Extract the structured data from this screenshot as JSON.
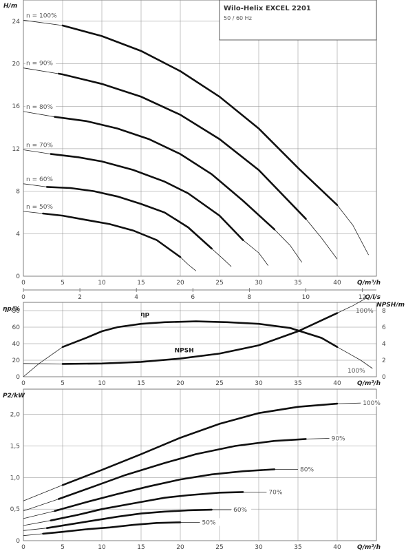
{
  "header": {
    "title": "Wilo-Helix EXCEL 2201",
    "subtitle": "50 / 60 Hz"
  },
  "chart_data": [
    {
      "id": "head",
      "type": "line",
      "xlabel": "Q/m³/h",
      "ylabel": "H/m",
      "xlim": [
        0,
        45
      ],
      "ylim": [
        0,
        26
      ],
      "x_ticks": [
        "0",
        "5",
        "10",
        "15",
        "20",
        "25",
        "30",
        "35",
        "40"
      ],
      "y_ticks": [
        "0",
        "4",
        "8",
        "12",
        "16",
        "20",
        "24"
      ],
      "secondary_x_label": "Q/l/s",
      "secondary_x_ticks": [
        "0",
        "2",
        "4",
        "6",
        "8",
        "10",
        "12"
      ],
      "grid": true,
      "series": [
        {
          "name": "n = 100%",
          "thick_range": [
            5,
            40
          ],
          "points": [
            [
              0,
              24.1
            ],
            [
              5,
              23.6
            ],
            [
              10,
              22.6
            ],
            [
              15,
              21.2
            ],
            [
              20,
              19.3
            ],
            [
              25,
              16.9
            ],
            [
              30,
              13.9
            ],
            [
              35,
              10.2
            ],
            [
              40,
              6.7
            ],
            [
              42,
              4.8
            ],
            [
              44,
              2.0
            ]
          ]
        },
        {
          "name": "n = 90%",
          "thick_range": [
            4.5,
            36
          ],
          "points": [
            [
              0,
              19.6
            ],
            [
              5,
              19.0
            ],
            [
              10,
              18.1
            ],
            [
              15,
              16.9
            ],
            [
              20,
              15.2
            ],
            [
              25,
              12.9
            ],
            [
              30,
              10.0
            ],
            [
              36,
              5.4
            ],
            [
              38,
              3.6
            ],
            [
              40,
              1.6
            ]
          ]
        },
        {
          "name": "n = 80%",
          "thick_range": [
            4,
            32
          ],
          "points": [
            [
              0,
              15.5
            ],
            [
              4,
              15.0
            ],
            [
              8,
              14.6
            ],
            [
              12,
              13.9
            ],
            [
              16,
              12.9
            ],
            [
              20,
              11.5
            ],
            [
              24,
              9.6
            ],
            [
              28,
              7.1
            ],
            [
              32,
              4.4
            ],
            [
              34,
              2.9
            ],
            [
              35.5,
              1.3
            ]
          ]
        },
        {
          "name": "n = 70%",
          "thick_range": [
            3.5,
            28
          ],
          "points": [
            [
              0,
              11.9
            ],
            [
              3.5,
              11.5
            ],
            [
              7,
              11.2
            ],
            [
              10,
              10.8
            ],
            [
              14,
              10.0
            ],
            [
              18,
              8.9
            ],
            [
              21,
              7.8
            ],
            [
              25,
              5.7
            ],
            [
              28,
              3.4
            ],
            [
              30,
              2.2
            ],
            [
              31.2,
              1.0
            ]
          ]
        },
        {
          "name": "n = 60%",
          "thick_range": [
            3,
            24
          ],
          "points": [
            [
              0,
              8.7
            ],
            [
              3,
              8.4
            ],
            [
              6,
              8.3
            ],
            [
              9,
              8.0
            ],
            [
              12,
              7.5
            ],
            [
              15,
              6.8
            ],
            [
              18,
              6.0
            ],
            [
              21,
              4.6
            ],
            [
              24,
              2.6
            ],
            [
              25.5,
              1.6
            ],
            [
              26.5,
              0.9
            ]
          ]
        },
        {
          "name": "n = 50%",
          "thick_range": [
            2.5,
            20
          ],
          "points": [
            [
              0,
              6.1
            ],
            [
              2.5,
              5.9
            ],
            [
              5,
              5.7
            ],
            [
              8,
              5.3
            ],
            [
              11,
              4.9
            ],
            [
              14,
              4.3
            ],
            [
              17,
              3.4
            ],
            [
              20,
              1.8
            ],
            [
              21,
              1.1
            ],
            [
              22,
              0.5
            ]
          ]
        }
      ]
    },
    {
      "id": "efficiency-npsh",
      "type": "line",
      "xlabel": "Q/m³/h",
      "ylabel": "ηp/%",
      "ylabel_right": "NPSH/m",
      "xlim": [
        0,
        45
      ],
      "ylim": [
        0,
        90
      ],
      "ylim_right": [
        0,
        9
      ],
      "x_ticks": [
        "0",
        "5",
        "10",
        "15",
        "20",
        "25",
        "30",
        "35",
        "40"
      ],
      "y_ticks": [
        "0",
        "20",
        "40",
        "60",
        "80"
      ],
      "y_ticks_right": [
        "0",
        "2",
        "4",
        "6",
        "8"
      ],
      "grid": true,
      "series": [
        {
          "name": "ηp",
          "axis": "left",
          "end_label": "100%",
          "thick_range": [
            5,
            40
          ],
          "points": [
            [
              0,
              0
            ],
            [
              2,
              16
            ],
            [
              5,
              36
            ],
            [
              8,
              47
            ],
            [
              10,
              55
            ],
            [
              12,
              60
            ],
            [
              15,
              64
            ],
            [
              18,
              66
            ],
            [
              22,
              67
            ],
            [
              26,
              66
            ],
            [
              30,
              64
            ],
            [
              34,
              59
            ],
            [
              38,
              47
            ],
            [
              40,
              36
            ],
            [
              43,
              20
            ],
            [
              44.5,
              10
            ]
          ]
        },
        {
          "name": "NPSH",
          "axis": "right",
          "end_label": "100%",
          "thick_range": [
            5,
            40
          ],
          "points": [
            [
              0,
              1.6
            ],
            [
              5,
              1.55
            ],
            [
              10,
              1.6
            ],
            [
              15,
              1.8
            ],
            [
              20,
              2.2
            ],
            [
              25,
              2.8
            ],
            [
              30,
              3.8
            ],
            [
              35,
              5.5
            ],
            [
              40,
              7.7
            ],
            [
              42,
              8.6
            ],
            [
              43.5,
              9.4
            ]
          ]
        }
      ]
    },
    {
      "id": "power",
      "type": "line",
      "xlabel": "Q/m³/h",
      "ylabel": "P2/kW",
      "xlim": [
        0,
        45
      ],
      "ylim": [
        0,
        2.4
      ],
      "x_ticks": [
        "0",
        "5",
        "10",
        "15",
        "20",
        "25",
        "30",
        "35",
        "40"
      ],
      "y_ticks": [
        "0",
        "0,5",
        "1,0",
        "1,5",
        "2,0"
      ],
      "grid": true,
      "series": [
        {
          "name": "100%",
          "thick_range": [
            5,
            40
          ],
          "points": [
            [
              0,
              0.63
            ],
            [
              5,
              0.88
            ],
            [
              10,
              1.12
            ],
            [
              15,
              1.37
            ],
            [
              20,
              1.63
            ],
            [
              25,
              1.85
            ],
            [
              30,
              2.02
            ],
            [
              35,
              2.12
            ],
            [
              40,
              2.17
            ],
            [
              43,
              2.18
            ]
          ]
        },
        {
          "name": "90%",
          "thick_range": [
            4.5,
            36
          ],
          "points": [
            [
              0,
              0.47
            ],
            [
              4.5,
              0.66
            ],
            [
              9,
              0.86
            ],
            [
              13,
              1.04
            ],
            [
              18,
              1.23
            ],
            [
              22,
              1.37
            ],
            [
              27,
              1.5
            ],
            [
              32,
              1.58
            ],
            [
              36,
              1.61
            ],
            [
              39,
              1.62
            ]
          ]
        },
        {
          "name": "80%",
          "thick_range": [
            4,
            32
          ],
          "points": [
            [
              0,
              0.35
            ],
            [
              4,
              0.47
            ],
            [
              8,
              0.61
            ],
            [
              12,
              0.74
            ],
            [
              16,
              0.86
            ],
            [
              20,
              0.97
            ],
            [
              24,
              1.05
            ],
            [
              28,
              1.1
            ],
            [
              32,
              1.13
            ],
            [
              35,
              1.13
            ]
          ]
        },
        {
          "name": "70%",
          "thick_range": [
            3.5,
            28
          ],
          "points": [
            [
              0,
              0.24
            ],
            [
              3.5,
              0.32
            ],
            [
              7,
              0.41
            ],
            [
              10,
              0.5
            ],
            [
              14,
              0.59
            ],
            [
              18,
              0.68
            ],
            [
              21,
              0.72
            ],
            [
              25,
              0.76
            ],
            [
              28,
              0.77
            ],
            [
              31,
              0.77
            ]
          ]
        },
        {
          "name": "60%",
          "thick_range": [
            3,
            24
          ],
          "points": [
            [
              0,
              0.16
            ],
            [
              3,
              0.2
            ],
            [
              6,
              0.26
            ],
            [
              9,
              0.32
            ],
            [
              12,
              0.38
            ],
            [
              15,
              0.43
            ],
            [
              18,
              0.46
            ],
            [
              21,
              0.48
            ],
            [
              24,
              0.49
            ],
            [
              26.5,
              0.49
            ]
          ]
        },
        {
          "name": "50%",
          "thick_range": [
            2.5,
            20
          ],
          "points": [
            [
              0,
              0.08
            ],
            [
              2.5,
              0.11
            ],
            [
              5,
              0.14
            ],
            [
              8,
              0.18
            ],
            [
              11,
              0.21
            ],
            [
              14,
              0.25
            ],
            [
              17,
              0.28
            ],
            [
              20,
              0.29
            ],
            [
              22.5,
              0.29
            ]
          ]
        }
      ]
    }
  ]
}
